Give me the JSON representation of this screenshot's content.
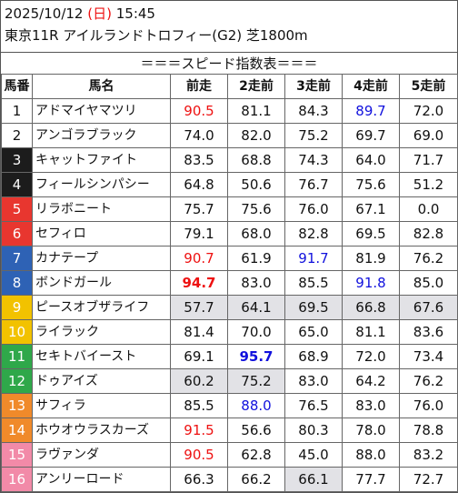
{
  "header": {
    "date": "2025/10/12",
    "weekday": "(日)",
    "time": "15:45",
    "race_title": "東京11R アイルランドトロフィー(G2) 芝1800m"
  },
  "banner": "＝＝＝スピード指数表＝＝＝",
  "columns": [
    "馬番",
    "馬名",
    "前走",
    "2走前",
    "3走前",
    "4走前",
    "5走前"
  ],
  "rows": [
    {
      "num": "1",
      "name": "アドマイヤマツリ",
      "v": [
        "90.5",
        "81.1",
        "84.3",
        "89.7",
        "72.0"
      ]
    },
    {
      "num": "2",
      "name": "アンゴラブラック",
      "v": [
        "74.0",
        "82.0",
        "75.2",
        "69.7",
        "69.0"
      ]
    },
    {
      "num": "3",
      "name": "キャットファイト",
      "v": [
        "83.5",
        "68.8",
        "74.3",
        "64.0",
        "71.7"
      ]
    },
    {
      "num": "4",
      "name": "フィールシンパシー",
      "v": [
        "64.8",
        "50.6",
        "76.7",
        "75.6",
        "51.2"
      ]
    },
    {
      "num": "5",
      "name": "リラボニート",
      "v": [
        "75.7",
        "75.6",
        "76.0",
        "67.1",
        "0.0"
      ]
    },
    {
      "num": "6",
      "name": "セフィロ",
      "v": [
        "79.1",
        "68.0",
        "82.8",
        "69.5",
        "82.8"
      ]
    },
    {
      "num": "7",
      "name": "カナテープ",
      "v": [
        "90.7",
        "61.9",
        "91.7",
        "81.9",
        "76.2"
      ]
    },
    {
      "num": "8",
      "name": "ボンドガール",
      "v": [
        "94.7",
        "83.0",
        "85.5",
        "91.8",
        "85.0"
      ]
    },
    {
      "num": "9",
      "name": "ピースオブザライフ",
      "v": [
        "57.7",
        "64.1",
        "69.5",
        "66.8",
        "67.6"
      ]
    },
    {
      "num": "10",
      "name": "ライラック",
      "v": [
        "81.4",
        "70.0",
        "65.0",
        "81.1",
        "83.6"
      ]
    },
    {
      "num": "11",
      "name": "セキトバイースト",
      "v": [
        "69.1",
        "95.7",
        "68.9",
        "72.0",
        "73.4"
      ]
    },
    {
      "num": "12",
      "name": "ドゥアイズ",
      "v": [
        "60.2",
        "75.2",
        "83.0",
        "64.2",
        "76.2"
      ]
    },
    {
      "num": "13",
      "name": "サフィラ",
      "v": [
        "85.5",
        "88.0",
        "76.5",
        "83.0",
        "76.0"
      ]
    },
    {
      "num": "14",
      "name": "ホウオウラスカーズ",
      "v": [
        "91.5",
        "56.6",
        "80.3",
        "78.0",
        "78.8"
      ]
    },
    {
      "num": "15",
      "name": "ラヴァンダ",
      "v": [
        "90.5",
        "62.8",
        "45.0",
        "88.0",
        "83.2"
      ]
    },
    {
      "num": "16",
      "name": "アンリーロード",
      "v": [
        "66.3",
        "66.2",
        "66.1",
        "77.7",
        "72.7"
      ]
    }
  ],
  "colors": {
    "frame_1": "#ffffff",
    "frame_2": "#1c1c1c",
    "frame_3": "#e8362f",
    "frame_4": "#2e62b5",
    "frame_5": "#f2c200",
    "frame_6": "#2fa84a",
    "frame_7": "#f08a2a",
    "frame_8": "#f28aa8",
    "highlight_red": "#ee1111",
    "highlight_blue": "#1111dd",
    "gray_cell": "#e2e2e6"
  }
}
